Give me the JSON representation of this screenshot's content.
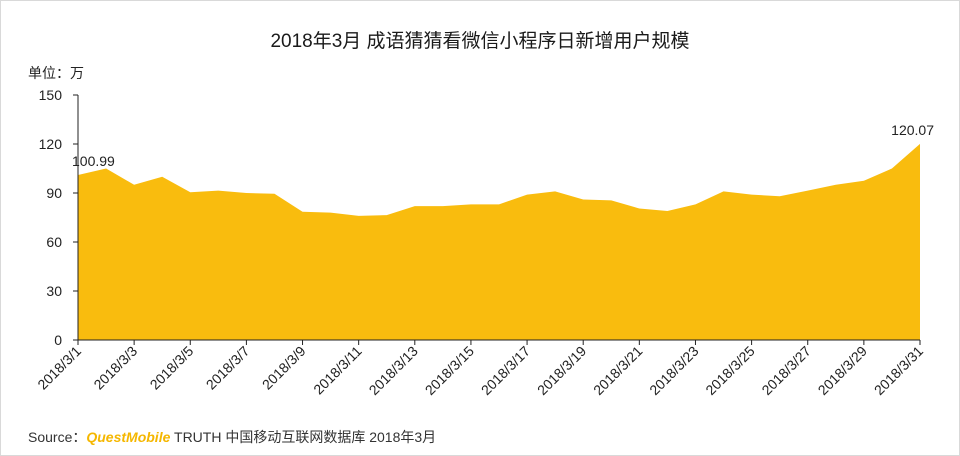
{
  "title": "2018年3月 成语猜猜看微信小程序日新增用户规模",
  "unit_label": "单位：万",
  "source": {
    "prefix": "Source：",
    "brand": "QuestMobile",
    "suffix": " TRUTH 中国移动互联网数据库 2018年3月"
  },
  "colors": {
    "area": "#F9BC0E",
    "brand": "#F5B700",
    "axis": "#222222"
  },
  "chart_data": {
    "type": "area",
    "title": "2018年3月 成语猜猜看微信小程序日新增用户规模",
    "xlabel": "",
    "ylabel": "单位：万",
    "ylim": [
      0,
      150
    ],
    "yticks": [
      0,
      30,
      60,
      90,
      120,
      150
    ],
    "grid": false,
    "x": [
      "2018/3/1",
      "2018/3/2",
      "2018/3/3",
      "2018/3/4",
      "2018/3/5",
      "2018/3/6",
      "2018/3/7",
      "2018/3/8",
      "2018/3/9",
      "2018/3/10",
      "2018/3/11",
      "2018/3/12",
      "2018/3/13",
      "2018/3/14",
      "2018/3/15",
      "2018/3/16",
      "2018/3/17",
      "2018/3/18",
      "2018/3/19",
      "2018/3/20",
      "2018/3/21",
      "2018/3/22",
      "2018/3/23",
      "2018/3/24",
      "2018/3/25",
      "2018/3/26",
      "2018/3/27",
      "2018/3/28",
      "2018/3/29",
      "2018/3/30",
      "2018/3/31"
    ],
    "xtick_labels": [
      "2018/3/1",
      "2018/3/3",
      "2018/3/5",
      "2018/3/7",
      "2018/3/9",
      "2018/3/11",
      "2018/3/13",
      "2018/3/15",
      "2018/3/17",
      "2018/3/19",
      "2018/3/21",
      "2018/3/23",
      "2018/3/25",
      "2018/3/27",
      "2018/3/29",
      "2018/3/31"
    ],
    "values": [
      100.99,
      105,
      95,
      100,
      90.5,
      91.5,
      90,
      89.5,
      78.5,
      78,
      76,
      76.5,
      82,
      82,
      83,
      83,
      89,
      91,
      86,
      85.5,
      80.5,
      79,
      83,
      91,
      89,
      88,
      91.5,
      95,
      97.5,
      105,
      120.07
    ],
    "annotations": [
      {
        "index": 0,
        "text": "100.99"
      },
      {
        "index": 30,
        "text": "120.07"
      }
    ]
  }
}
